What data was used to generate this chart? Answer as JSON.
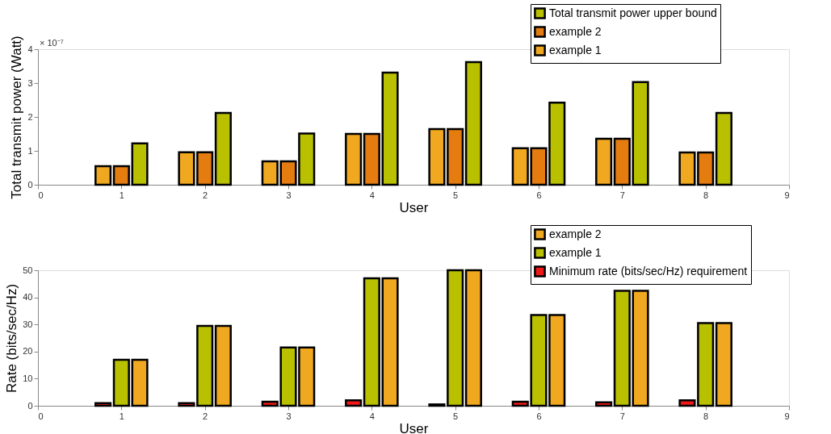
{
  "chart_data": [
    {
      "type": "bar",
      "xlabel": "User",
      "ylabel": "Total transmit power (Watt)",
      "annotations": [
        "× 10⁻⁷"
      ],
      "x": [
        1,
        2,
        3,
        4,
        5,
        6,
        7,
        8
      ],
      "series": [
        {
          "name": "example 1",
          "color": "#f0a820",
          "values": [
            0.55,
            0.96,
            0.69,
            1.5,
            1.64,
            1.08,
            1.36,
            0.95
          ]
        },
        {
          "name": "example 2",
          "color": "#e47c10",
          "values": [
            0.55,
            0.96,
            0.69,
            1.5,
            1.64,
            1.08,
            1.36,
            0.95
          ]
        },
        {
          "name": "Total transmit power upper bound",
          "color": "#b8c000",
          "values": [
            1.22,
            2.12,
            1.51,
            3.31,
            3.62,
            2.42,
            3.03,
            2.12
          ]
        }
      ],
      "xlim": [
        0,
        9
      ],
      "xticks": [
        0,
        1,
        2,
        3,
        4,
        5,
        6,
        7,
        8,
        9
      ],
      "ylim": [
        0,
        4
      ],
      "yticks": [
        0,
        1,
        2,
        3,
        4
      ],
      "grid": false,
      "legend": "top right"
    },
    {
      "type": "bar",
      "xlabel": "User",
      "ylabel": "Rate (bits/sec/Hz)",
      "x": [
        1,
        2,
        3,
        4,
        5,
        6,
        7,
        8
      ],
      "series": [
        {
          "name": "Minimum rate (bits/sec/Hz) requirement",
          "color": "#ee1818",
          "values": [
            1,
            1,
            1.5,
            2,
            0.5,
            1.5,
            1.3,
            2
          ]
        },
        {
          "name": "example 1",
          "color": "#b8c000",
          "values": [
            17,
            29.5,
            21.5,
            47,
            50,
            33.5,
            42.4,
            30.5
          ]
        },
        {
          "name": "example 2",
          "color": "#f0a820",
          "values": [
            17,
            29.5,
            21.5,
            47,
            50,
            33.5,
            42.4,
            30.5
          ]
        }
      ],
      "xlim": [
        0,
        9
      ],
      "xticks": [
        0,
        1,
        2,
        3,
        4,
        5,
        6,
        7,
        8,
        9
      ],
      "ylim": [
        0,
        50
      ],
      "yticks": [
        0,
        10,
        20,
        30,
        40,
        50
      ],
      "grid": false,
      "legend": "top right"
    }
  ]
}
